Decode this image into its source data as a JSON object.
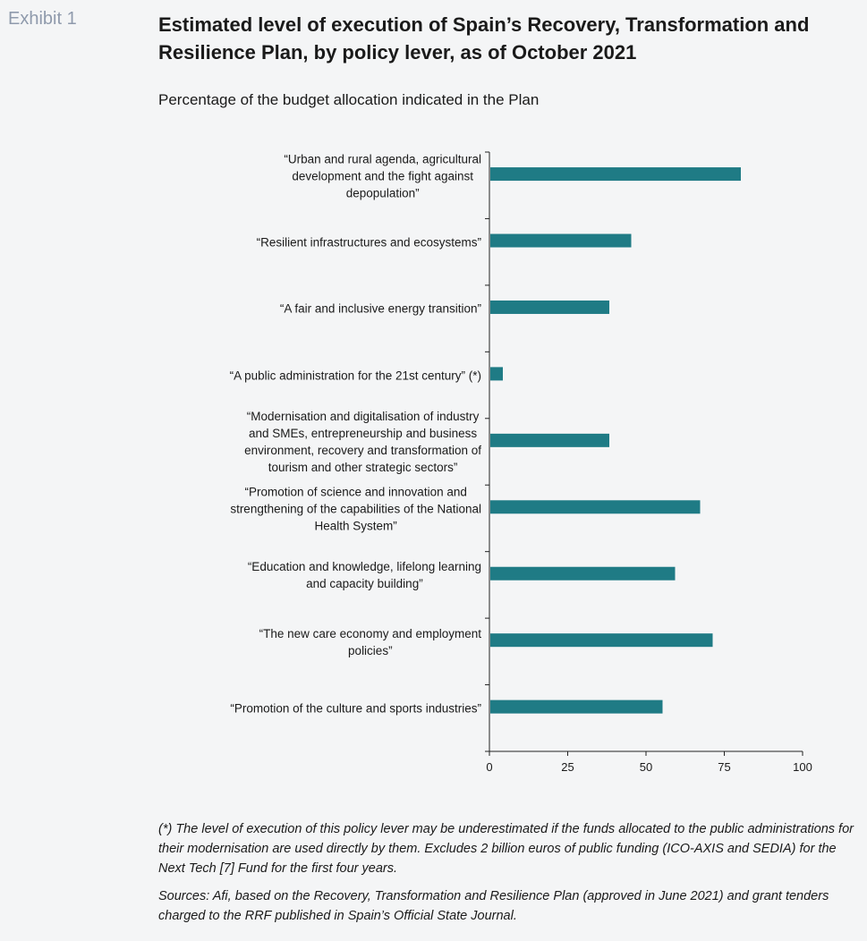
{
  "exhibit_label": "Exhibit 1",
  "title": "Estimated level of execution of Spain’s Recovery, Transformation and Resilience Plan, by policy lever, as of October 2021",
  "subtitle": "Percentage of the budget allocation indicated in the Plan",
  "chart_data": {
    "type": "bar",
    "orientation": "horizontal",
    "categories": [
      [
        "“Urban and rural agenda, agricultural",
        "development and the fight against",
        "depopulation”"
      ],
      [
        "“Resilient infrastructures and ecosystems”"
      ],
      [
        "“A fair and inclusive energy transition”"
      ],
      [
        "“A public administration for the 21st century” (*)"
      ],
      [
        "“Modernisation and digitalisation of industry",
        "and SMEs, entrepreneurship and business",
        "environment, recovery and transformation of",
        "tourism and other strategic sectors”"
      ],
      [
        "“Promotion of science and innovation and",
        "strengthening of the capabilities of the National",
        "Health System”"
      ],
      [
        "“Education and knowledge, lifelong learning",
        "and capacity building”"
      ],
      [
        "“The new care economy and employment",
        "policies”"
      ],
      [
        "“Promotion of the culture and sports industries”"
      ]
    ],
    "values": [
      80,
      45,
      38,
      4,
      38,
      67,
      59,
      71,
      55
    ],
    "xlim": [
      0,
      100
    ],
    "xticks": [
      "0",
      "25",
      "50",
      "75",
      "100"
    ],
    "bar_color": "#1f7b85",
    "grid": false
  },
  "footnote": "(*) The level of execution of this policy lever may be underestimated if the funds allocated to the public administrations for their modernisation are used directly by them. Excludes 2 billion euros of public funding (ICO-AXIS and SEDIA) for the Next Tech [7] Fund for the first four years.",
  "sources": "Sources: Afi, based on the Recovery, Transformation and Resilience Plan (approved in June 2021) and grant tenders charged to the RRF published in Spain’s Official State Journal."
}
